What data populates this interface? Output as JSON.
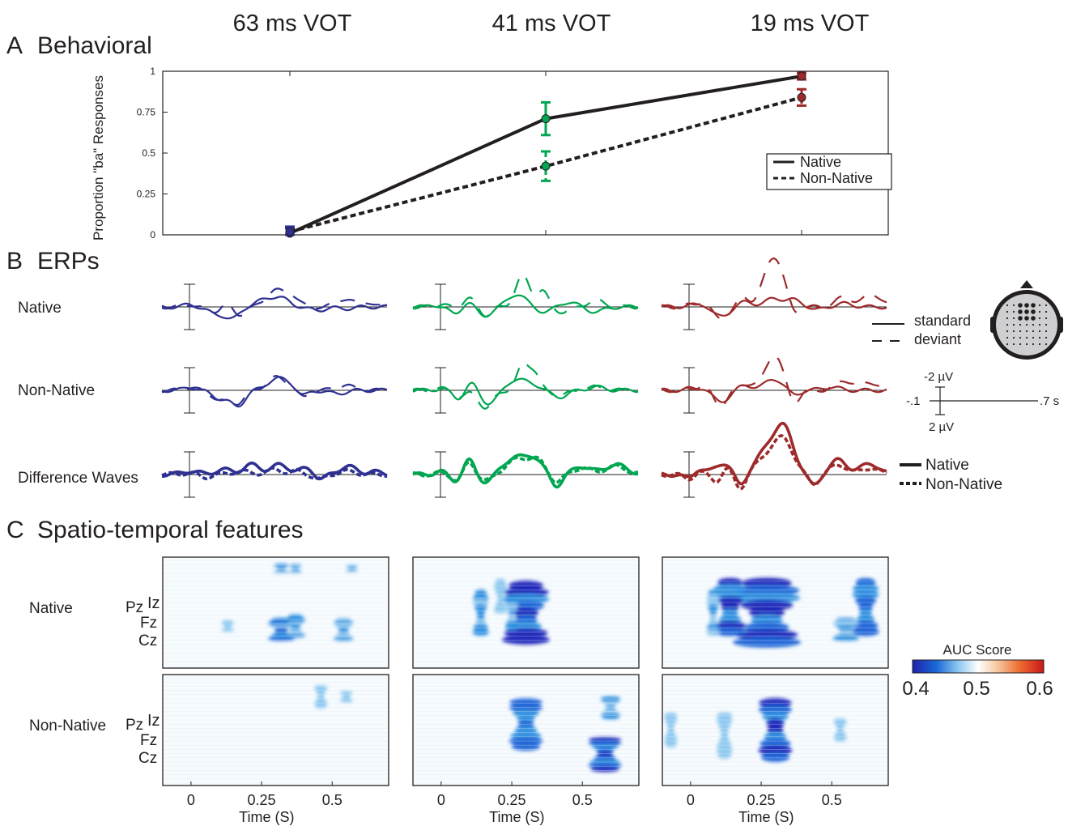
{
  "conditions": [
    {
      "label": "63 ms VOT",
      "color": "#2e3192"
    },
    {
      "label": "41 ms VOT",
      "color": "#00a651"
    },
    {
      "label": "19 ms VOT",
      "color": "#9e2a2b"
    }
  ],
  "panels": {
    "a": {
      "label": "A",
      "title": "Behavioral"
    },
    "b": {
      "label": "B",
      "title": "ERPs"
    },
    "c": {
      "label": "C",
      "title": "Spatio-temporal features"
    }
  },
  "erp": {
    "rows": [
      "Native",
      "Non-Native",
      "Difference Waves"
    ],
    "legend_line": {
      "solid": "standard",
      "dashed": "deviant"
    },
    "legend_diff": {
      "solid": "Native",
      "dashed": "Non-Native"
    },
    "scale": {
      "top": "-2 µV",
      "bottom": "2 µV",
      "left": "-.1",
      "right": ".7 s"
    }
  },
  "spatio": {
    "rows": [
      "Native",
      "Non-Native"
    ],
    "electrodes": [
      "Pz",
      "Iz",
      "Fz",
      "Cz"
    ],
    "xticks": [
      "0",
      "0.25",
      "0.5"
    ],
    "xlabel": "Time (S)",
    "colorbar": {
      "title": "AUC Score",
      "ticks": [
        "0.4",
        "0.5",
        "0.6"
      ]
    }
  },
  "chart_data": [
    {
      "type": "line",
      "ylabel": "Proportion \"ba\" Responses",
      "ylim": [
        0,
        1
      ],
      "yticks": [
        "0",
        "0.25",
        "0.5",
        "0.75",
        "1"
      ],
      "categories": [
        "63 ms VOT",
        "41 ms VOT",
        "19 ms VOT"
      ],
      "legend_position": "bottom-right",
      "series": [
        {
          "name": "Native",
          "values": [
            0.01,
            0.71,
            0.97
          ],
          "err": [
            0.03,
            0.1,
            0.02
          ],
          "style": "solid"
        },
        {
          "name": "Non-Native",
          "values": [
            0.02,
            0.42,
            0.84
          ],
          "err": [
            0.03,
            0.09,
            0.05
          ],
          "style": "dashed"
        }
      ]
    },
    {
      "type": "line",
      "description_units": "µV",
      "x_range": [
        -0.1,
        0.7
      ],
      "note": "ERP waveforms per VOT condition: standard vs deviant, and difference waves Native vs Non-Native"
    },
    {
      "type": "heatmap",
      "xlabel": "Time (S)",
      "x_range": [
        -0.1,
        0.7
      ],
      "xticks": [
        0,
        0.25,
        0.5
      ],
      "color_range": [
        0.4,
        0.6
      ]
    }
  ]
}
